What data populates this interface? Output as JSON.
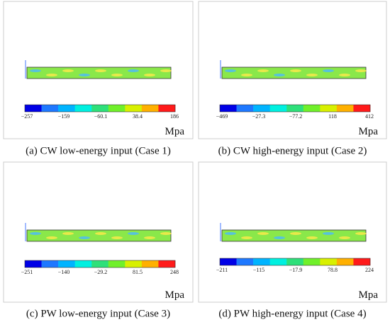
{
  "panels": [
    {
      "caption": "(a) CW low-energy input (Case 1)",
      "unit": "Mpa",
      "scale_labels": [
        "−257",
        "−159",
        "−60.1",
        "38.4",
        "186"
      ]
    },
    {
      "caption": "(b) CW high-energy input (Case 2)",
      "unit": "Mpa",
      "scale_labels": [
        "−469",
        "−27.3",
        "−77.2",
        "118",
        "412"
      ]
    },
    {
      "caption": "(c) PW low-energy input (Case 3)",
      "unit": "Mpa",
      "scale_labels": [
        "−251",
        "−140",
        "−29.2",
        "81.5",
        "248"
      ]
    },
    {
      "caption": "(d) PW high-energy input (Case 4)",
      "unit": "Mpa",
      "scale_labels": [
        "−211",
        "−115",
        "−17.9",
        "78.8",
        "224"
      ]
    }
  ]
}
